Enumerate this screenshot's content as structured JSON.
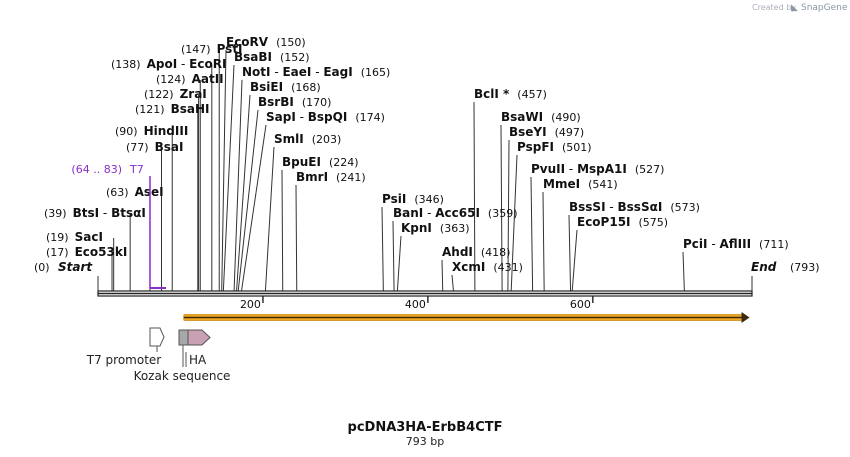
{
  "app": {
    "credit_prefix": "Created by",
    "credit_brand": "SnapGene"
  },
  "plasmid": {
    "name": "pcDNA3HA-ErbB4CTF",
    "length_label": "793 bp",
    "length": 793
  },
  "ends": {
    "start": {
      "label": "Start",
      "pos": 0
    },
    "end": {
      "label": "End",
      "pos": 793
    }
  },
  "ticks": [
    {
      "label": "200",
      "value": 200
    },
    {
      "label": "400",
      "value": 400
    },
    {
      "label": "600",
      "value": 600
    }
  ],
  "selection": {
    "label": "T7",
    "range": "(64 .. 83)",
    "start": 64,
    "end": 83
  },
  "enzymes": [
    {
      "names": [
        "Eco53kI"
      ],
      "pos": 17
    },
    {
      "names": [
        "SacI"
      ],
      "pos": 19
    },
    {
      "names": [
        "BtsI",
        "BtsαI"
      ],
      "pos": 39
    },
    {
      "names": [
        "AseI"
      ],
      "pos": 63
    },
    {
      "names": [
        "BsaI"
      ],
      "pos": 77
    },
    {
      "names": [
        "HindIII"
      ],
      "pos": 90
    },
    {
      "names": [
        "BsaHI"
      ],
      "pos": 121
    },
    {
      "names": [
        "ZraI"
      ],
      "pos": 122
    },
    {
      "names": [
        "AatII"
      ],
      "pos": 124
    },
    {
      "names": [
        "ApoI",
        "EcoRI"
      ],
      "pos": 138
    },
    {
      "names": [
        "PstI"
      ],
      "pos": 147
    },
    {
      "names": [
        "EcoRV"
      ],
      "pos": 150
    },
    {
      "names": [
        "BsaBI"
      ],
      "pos": 152
    },
    {
      "names": [
        "NotI",
        "EaeI",
        "EagI"
      ],
      "pos": 165
    },
    {
      "names": [
        "BsiEI"
      ],
      "pos": 168
    },
    {
      "names": [
        "BsrBI"
      ],
      "pos": 170
    },
    {
      "names": [
        "SapI",
        "BspQI"
      ],
      "pos": 174
    },
    {
      "names": [
        "SmlI"
      ],
      "pos": 203
    },
    {
      "names": [
        "BpuEI"
      ],
      "pos": 224
    },
    {
      "names": [
        "BmrI"
      ],
      "pos": 241
    },
    {
      "names": [
        "PsiI"
      ],
      "pos": 346
    },
    {
      "names": [
        "BanI",
        "Acc65I"
      ],
      "pos": 359
    },
    {
      "names": [
        "KpnI"
      ],
      "pos": 363
    },
    {
      "names": [
        "AhdI"
      ],
      "pos": 418
    },
    {
      "names": [
        "XcmI"
      ],
      "pos": 431
    },
    {
      "names": [
        "BclI *"
      ],
      "pos": 457
    },
    {
      "names": [
        "BsaWI"
      ],
      "pos": 490
    },
    {
      "names": [
        "BseYI"
      ],
      "pos": 497
    },
    {
      "names": [
        "PspFI"
      ],
      "pos": 501
    },
    {
      "names": [
        "PvuII",
        "MspA1I"
      ],
      "pos": 527
    },
    {
      "names": [
        "MmeI"
      ],
      "pos": 541
    },
    {
      "names": [
        "BssSI",
        "BssSαI"
      ],
      "pos": 573
    },
    {
      "names": [
        "EcoP15I"
      ],
      "pos": 575
    },
    {
      "names": [
        "PciI",
        "AflIII"
      ],
      "pos": 711
    }
  ],
  "features": [
    {
      "name": "T7 promoter",
      "start": 64,
      "end": 83,
      "color": "#ffffff"
    },
    {
      "name": "Kozak sequence",
      "start": 98,
      "end": 107,
      "color": "#a8a8a8"
    },
    {
      "name": "HA",
      "start": 107,
      "end": 134,
      "color": "#c9a0b4"
    }
  ],
  "orf": {
    "start": 104,
    "end": 790,
    "color": "#f0a820",
    "core": "#3a2a10"
  }
}
